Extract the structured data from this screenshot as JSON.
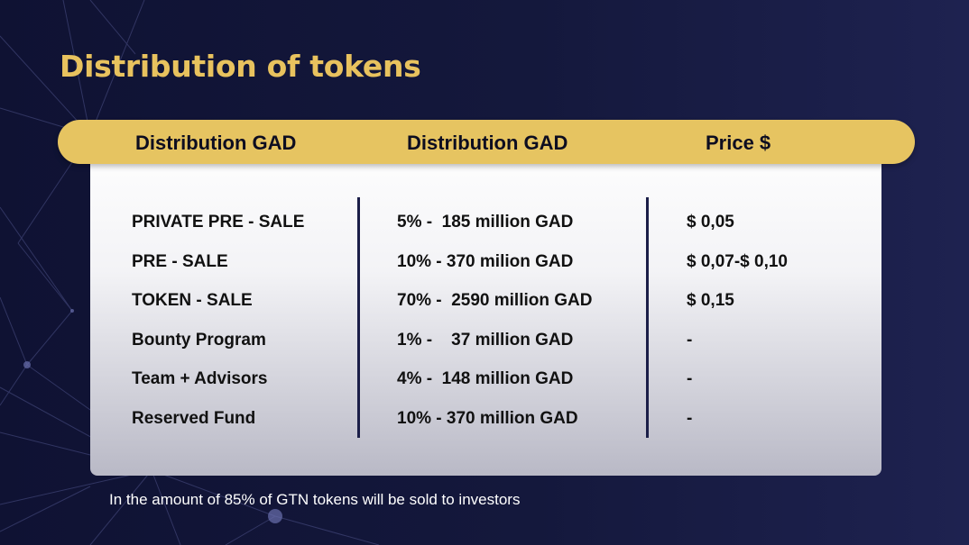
{
  "slide": {
    "title": "Distribution of tokens",
    "headers": [
      "Distribution GAD",
      "Distribution GAD",
      "Price $"
    ],
    "rows": [
      {
        "name": "PRIVATE PRE - SALE",
        "distribution": "5% -  185 million GAD",
        "price": "$ 0,05"
      },
      {
        "name": "PRE - SALE",
        "distribution": "10% - 370 milion GAD",
        "price": "$ 0,07-$ 0,10"
      },
      {
        "name": "TOKEN - SALE",
        "distribution": "70% -  2590 million GAD",
        "price": "$ 0,15"
      },
      {
        "name": "Bounty Program",
        "distribution": "1% -    37 million GAD",
        "price": "-"
      },
      {
        "name": "Team + Advisors",
        "distribution": "4% -  148 million GAD",
        "price": "-"
      },
      {
        "name": "Reserved Fund",
        "distribution": "10% - 370 million GAD",
        "price": "-"
      }
    ],
    "footnote": "In the amount of 85% of GTN tokens will be sold to investors"
  },
  "colors": {
    "background": "#14183c",
    "accent_gold": "#e6c461",
    "divider": "#1b1e48",
    "title": "#e8c25e"
  }
}
